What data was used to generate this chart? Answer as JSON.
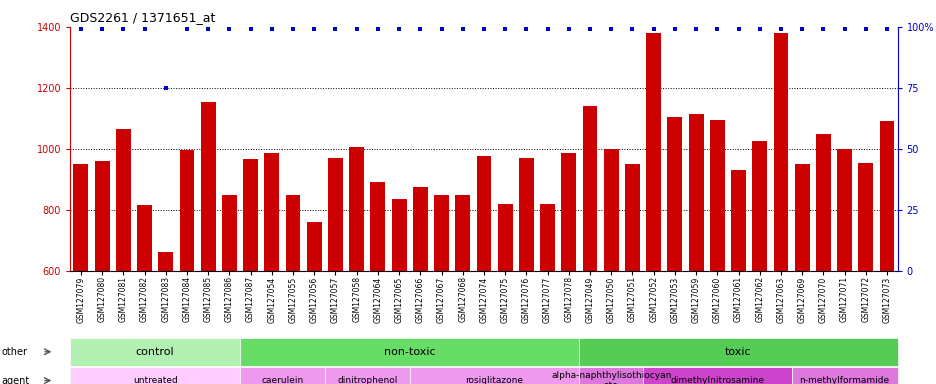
{
  "title": "GDS2261 / 1371651_at",
  "samples": [
    "GSM127079",
    "GSM127080",
    "GSM127081",
    "GSM127082",
    "GSM127083",
    "GSM127084",
    "GSM127085",
    "GSM127086",
    "GSM127087",
    "GSM127054",
    "GSM127055",
    "GSM127056",
    "GSM127057",
    "GSM127058",
    "GSM127064",
    "GSM127065",
    "GSM127066",
    "GSM127067",
    "GSM127068",
    "GSM127074",
    "GSM127075",
    "GSM127076",
    "GSM127077",
    "GSM127078",
    "GSM127049",
    "GSM127050",
    "GSM127051",
    "GSM127052",
    "GSM127053",
    "GSM127059",
    "GSM127060",
    "GSM127061",
    "GSM127062",
    "GSM127063",
    "GSM127069",
    "GSM127070",
    "GSM127071",
    "GSM127072",
    "GSM127073"
  ],
  "bar_values": [
    950,
    960,
    1065,
    815,
    660,
    995,
    1155,
    848,
    965,
    985,
    848,
    760,
    970,
    1005,
    890,
    835,
    875,
    848,
    850,
    975,
    820,
    970,
    820,
    985,
    1140,
    1000,
    950,
    1380,
    1105,
    1115,
    1095,
    930,
    1025,
    1380,
    950,
    1050,
    1000,
    955,
    1090
  ],
  "percentile_values": [
    99,
    99,
    99,
    99,
    75,
    99,
    99,
    99,
    99,
    99,
    99,
    99,
    99,
    99,
    99,
    99,
    99,
    99,
    99,
    99,
    99,
    99,
    99,
    99,
    99,
    99,
    99,
    99,
    99,
    99,
    99,
    99,
    99,
    99,
    99,
    99,
    99,
    99,
    99
  ],
  "bar_color": "#cc0000",
  "dot_color": "#0000cc",
  "ylim_left": [
    600,
    1400
  ],
  "ylim_right": [
    0,
    100
  ],
  "yticks_left": [
    600,
    800,
    1000,
    1200,
    1400
  ],
  "yticks_right": [
    0,
    25,
    50,
    75,
    100
  ],
  "grid_values": [
    800,
    1000,
    1200
  ],
  "groups_other": [
    {
      "label": "control",
      "start": 0,
      "end": 8,
      "color": "#b2f0b2"
    },
    {
      "label": "non-toxic",
      "start": 8,
      "end": 24,
      "color": "#66dd66"
    },
    {
      "label": "toxic",
      "start": 24,
      "end": 39,
      "color": "#55cc55"
    }
  ],
  "groups_agent": [
    {
      "label": "untreated",
      "start": 0,
      "end": 8,
      "color": "#ffccff"
    },
    {
      "label": "caerulein",
      "start": 8,
      "end": 12,
      "color": "#ee99ee"
    },
    {
      "label": "dinitrophenol",
      "start": 12,
      "end": 16,
      "color": "#ee99ee"
    },
    {
      "label": "rosiglitazone",
      "start": 16,
      "end": 24,
      "color": "#ee99ee"
    },
    {
      "label": "alpha-naphthylisothiocyan\nate",
      "start": 24,
      "end": 27,
      "color": "#dd77dd"
    },
    {
      "label": "dimethylnitrosamine",
      "start": 27,
      "end": 34,
      "color": "#cc44cc"
    },
    {
      "label": "n-methylformamide",
      "start": 34,
      "end": 39,
      "color": "#dd77dd"
    }
  ]
}
